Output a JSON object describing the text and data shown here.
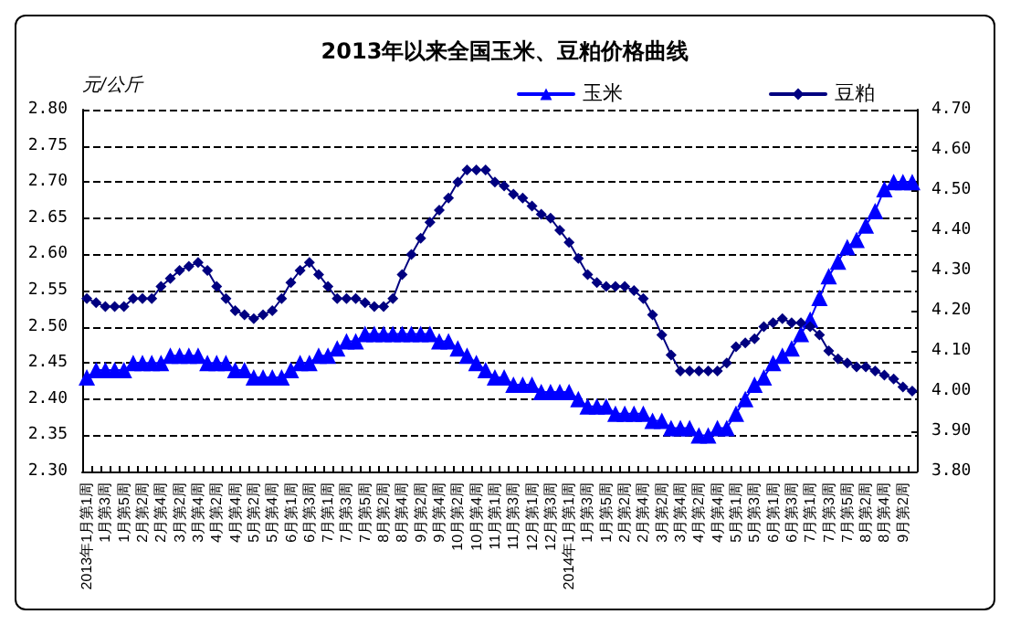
{
  "chart_data": {
    "type": "line",
    "title": "2013年以来全国玉米、豆粕价格曲线",
    "ylabel": "元/公斤",
    "categories": [
      "2013年1月第1周",
      null,
      "1月第3周",
      null,
      "1月第5周",
      null,
      "2月第2周",
      null,
      "2月第4周",
      null,
      "3月第2周",
      null,
      "3月第4周",
      null,
      "4月第2周",
      null,
      "4月第4周",
      null,
      "5月第2周",
      null,
      "5月第4周",
      null,
      "6月第1周",
      null,
      "6月第3周",
      null,
      "7月第1周",
      null,
      "7月第3周",
      null,
      "7月第5周",
      null,
      "8月第2周",
      null,
      "8月第4周",
      null,
      "9月第2周",
      null,
      "9月第4周",
      null,
      "10月第2周",
      null,
      "10月第4周",
      null,
      "11月第1周",
      null,
      "11月第3周",
      null,
      "12月第1周",
      null,
      "12月第3周",
      null,
      "2014年1月第1周",
      null,
      "1月第3周",
      null,
      "1月第5周",
      null,
      "2月第2周",
      null,
      "2月第4周",
      null,
      "3月第2周",
      null,
      "3月第4周",
      null,
      "4月第2周",
      null,
      "4月第4周",
      null,
      "5月第1周",
      null,
      "5月第3周",
      null,
      "6月第1周",
      null,
      "6月第3周",
      null,
      "7月第1周",
      null,
      "7月第3周",
      null,
      "7月第5周",
      null,
      "8月第2周",
      null,
      "8月第4周",
      null,
      "9月第2周",
      null
    ],
    "series": [
      {
        "name": "玉米",
        "color": "#0000ff",
        "marker": "triangle",
        "values": [
          2.43,
          2.44,
          2.44,
          2.44,
          2.44,
          2.45,
          2.45,
          2.45,
          2.45,
          2.46,
          2.46,
          2.46,
          2.46,
          2.45,
          2.45,
          2.45,
          2.44,
          2.44,
          2.43,
          2.43,
          2.43,
          2.43,
          2.44,
          2.45,
          2.45,
          2.46,
          2.46,
          2.47,
          2.48,
          2.48,
          2.49,
          2.49,
          2.49,
          2.49,
          2.49,
          2.49,
          2.49,
          2.49,
          2.48,
          2.48,
          2.47,
          2.46,
          2.45,
          2.44,
          2.43,
          2.43,
          2.42,
          2.42,
          2.42,
          2.41,
          2.41,
          2.41,
          2.41,
          2.4,
          2.39,
          2.39,
          2.39,
          2.38,
          2.38,
          2.38,
          2.38,
          2.37,
          2.37,
          2.36,
          2.36,
          2.36,
          2.35,
          2.35,
          2.36,
          2.36,
          2.38,
          2.4,
          2.42,
          2.43,
          2.45,
          2.46,
          2.47,
          2.49,
          2.51,
          2.54,
          2.57,
          2.59,
          2.61,
          2.62,
          2.64,
          2.66,
          2.69,
          2.7,
          2.7,
          2.7
        ]
      },
      {
        "name": "豆粕",
        "color": "#000080",
        "marker": "diamond",
        "axis": "y2",
        "values": [
          4.23,
          4.22,
          4.21,
          4.21,
          4.21,
          4.23,
          4.23,
          4.23,
          4.26,
          4.28,
          4.3,
          4.31,
          4.32,
          4.3,
          4.26,
          4.23,
          4.2,
          4.19,
          4.18,
          4.19,
          4.2,
          4.23,
          4.27,
          4.3,
          4.32,
          4.29,
          4.26,
          4.23,
          4.23,
          4.23,
          4.22,
          4.21,
          4.21,
          4.23,
          4.29,
          4.34,
          4.38,
          4.42,
          4.45,
          4.48,
          4.52,
          4.55,
          4.55,
          4.55,
          4.52,
          4.51,
          4.49,
          4.48,
          4.46,
          4.44,
          4.43,
          4.4,
          4.37,
          4.33,
          4.29,
          4.27,
          4.26,
          4.26,
          4.26,
          4.25,
          4.23,
          4.19,
          4.14,
          4.09,
          4.05,
          4.05,
          4.05,
          4.05,
          4.05,
          4.07,
          4.11,
          4.12,
          4.13,
          4.16,
          4.17,
          4.18,
          4.17,
          4.17,
          4.16,
          4.14,
          4.1,
          4.08,
          4.07,
          4.06,
          4.06,
          4.05,
          4.04,
          4.03,
          4.01,
          4.0
        ]
      }
    ],
    "ylim": [
      2.3,
      2.8
    ],
    "yticks": [
      {
        "value": 2.3,
        "label": "2.30"
      },
      {
        "value": 2.35,
        "label": "2.35"
      },
      {
        "value": 2.4,
        "label": "2.40"
      },
      {
        "value": 2.45,
        "label": "2.45"
      },
      {
        "value": 2.5,
        "label": "2.50"
      },
      {
        "value": 2.55,
        "label": "2.55"
      },
      {
        "value": 2.6,
        "label": "2.60"
      },
      {
        "value": 2.65,
        "label": "2.65"
      },
      {
        "value": 2.7,
        "label": "2.70"
      },
      {
        "value": 2.75,
        "label": "2.75"
      },
      {
        "value": 2.8,
        "label": "2.80"
      }
    ],
    "y2lim": [
      3.8,
      4.7
    ],
    "y2ticks": [
      {
        "value": 3.8,
        "label": "3.80"
      },
      {
        "value": 3.9,
        "label": "3.90"
      },
      {
        "value": 4.0,
        "label": "4.00"
      },
      {
        "value": 4.1,
        "label": "4.10"
      },
      {
        "value": 4.2,
        "label": "4.20"
      },
      {
        "value": 4.3,
        "label": "4.30"
      },
      {
        "value": 4.4,
        "label": "4.40"
      },
      {
        "value": 4.5,
        "label": "4.50"
      },
      {
        "value": 4.6,
        "label": "4.60"
      },
      {
        "value": 4.7,
        "label": "4.70"
      }
    ],
    "grid": "y",
    "legend": "top right",
    "line_style": "solid"
  }
}
